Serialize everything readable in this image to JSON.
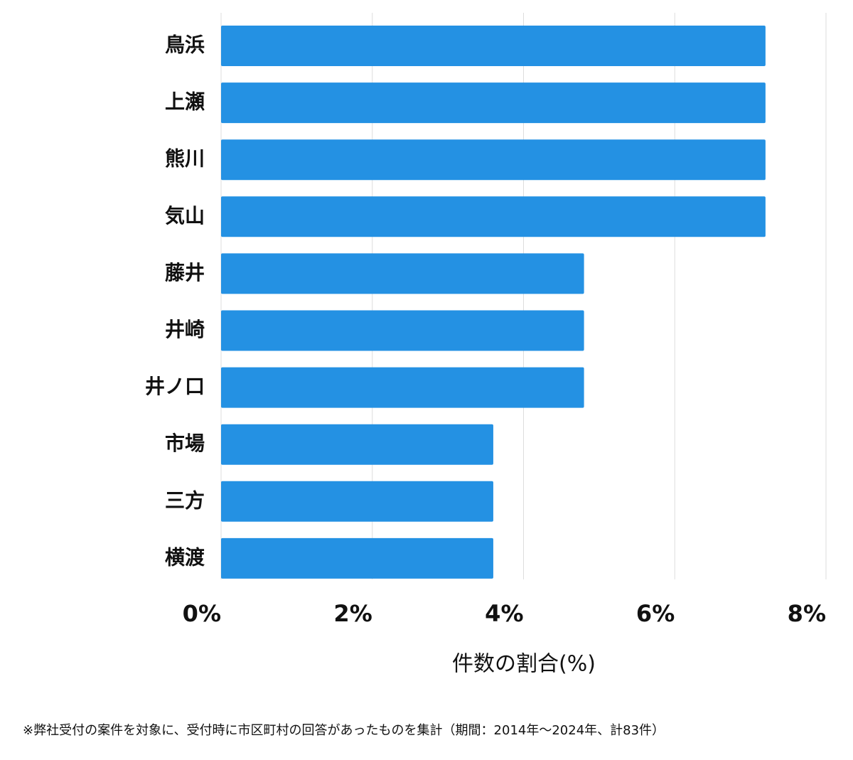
{
  "chart_data": {
    "type": "bar",
    "orientation": "horizontal",
    "categories": [
      "鳥浜",
      "上瀬",
      "熊川",
      "気山",
      "藤井",
      "井崎",
      "井ノ口",
      "市場",
      "三方",
      "横渡"
    ],
    "values": [
      7.2,
      7.2,
      7.2,
      7.2,
      4.8,
      4.8,
      4.8,
      3.6,
      3.6,
      3.6
    ],
    "color": "#2491e3",
    "xlim": [
      0,
      8
    ],
    "xticks": [
      {
        "value": 0,
        "label": "0%"
      },
      {
        "value": 2,
        "label": "2%"
      },
      {
        "value": 4,
        "label": "4%"
      },
      {
        "value": 6,
        "label": "6%"
      },
      {
        "value": 8,
        "label": "8%"
      }
    ],
    "grid": true,
    "x_label": "件数の割合(%)",
    "footnote": "※弊社受付の案件を対象に、受付時に市区町村の回答があったものを集計（期間：2014年〜2024年、計83件）"
  }
}
